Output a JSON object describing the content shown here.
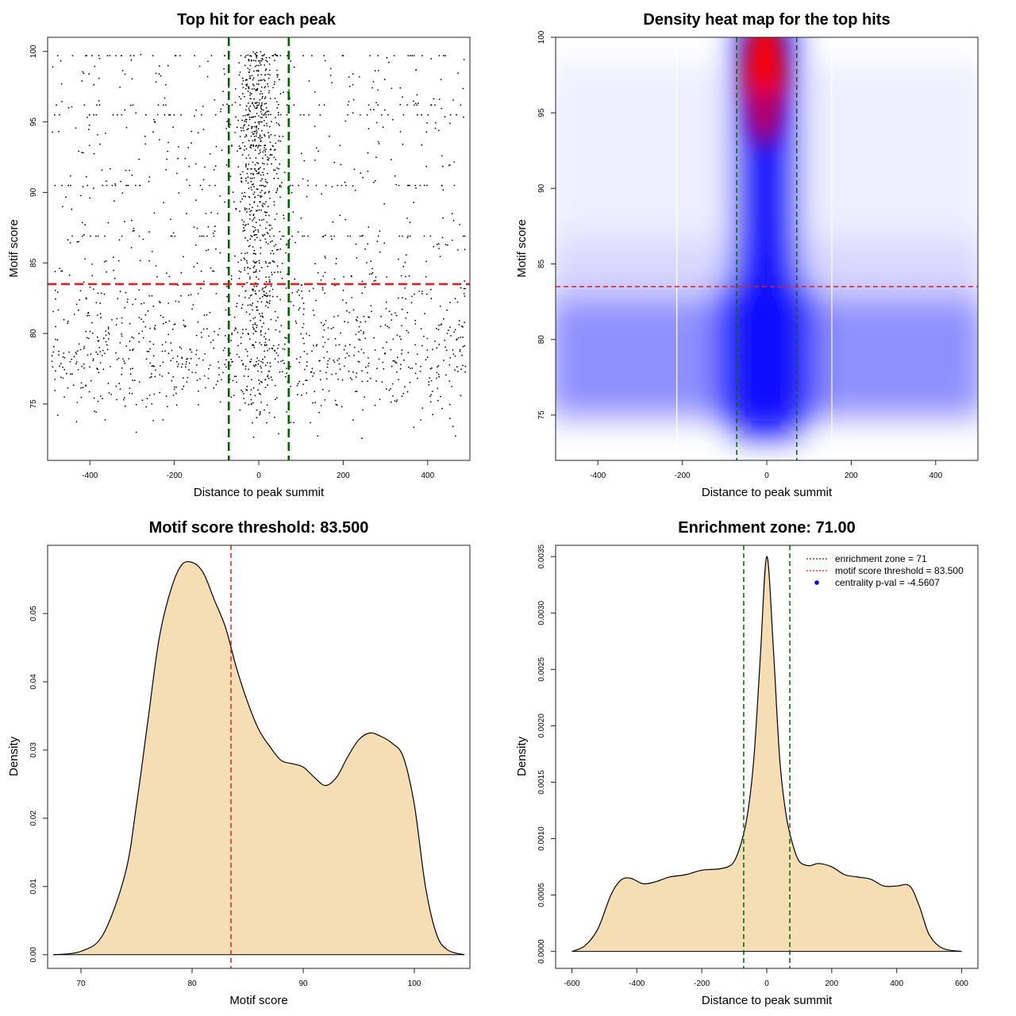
{
  "chart_data": [
    {
      "id": "scatter",
      "type": "scatter",
      "title": "Top hit for each peak",
      "xlabel": "Distance to peak summit",
      "ylabel": "Motif score",
      "xlim": [
        -500,
        500
      ],
      "ylim": [
        71,
        101
      ],
      "xticks": [
        -400,
        -200,
        0,
        200,
        400
      ],
      "yticks": [
        75,
        80,
        85,
        90,
        95,
        100
      ],
      "point_count": 2200,
      "vlines": [
        -71,
        71
      ],
      "hline": 83.5,
      "vline_color": "#006400",
      "hline_color": "#dd2222"
    },
    {
      "id": "heatmap",
      "type": "heatmap",
      "title": "Density heat map for the top hits",
      "xlabel": "Distance to peak summit",
      "ylabel": "Motif score",
      "xlim": [
        -500,
        500
      ],
      "ylim": [
        72,
        100
      ],
      "xticks": [
        -400,
        -200,
        0,
        200,
        400
      ],
      "yticks": [
        75,
        80,
        85,
        90,
        95,
        100
      ],
      "vlines": [
        -71,
        71
      ],
      "white_lines": [
        -213,
        154
      ],
      "hline": 83.5,
      "color_scale": [
        "#ffffff",
        "#0000ff",
        "#ff0000"
      ],
      "hotspot": {
        "x": 0,
        "y": 98
      }
    },
    {
      "id": "density-score",
      "type": "area",
      "title": "Motif score threshold: 83.500",
      "xlabel": "Motif score",
      "ylabel": "Density",
      "xlim": [
        67,
        105
      ],
      "ylim": [
        -0.002,
        0.06
      ],
      "xticks": [
        70,
        80,
        90,
        100
      ],
      "yticks": [
        0.0,
        0.01,
        0.02,
        0.03,
        0.04,
        0.05
      ],
      "ytick_labels": [
        "0.00",
        "0.01",
        "0.02",
        "0.03",
        "0.04",
        "0.05"
      ],
      "x": [
        67.5,
        70,
        72,
        74,
        75,
        76,
        77,
        78,
        79,
        80,
        81,
        82,
        83,
        84,
        85,
        86,
        87,
        88,
        89,
        90,
        91,
        92,
        93,
        94,
        95,
        96,
        97,
        98,
        99,
        100,
        101,
        102,
        103,
        104.5
      ],
      "y": [
        0.0,
        0.0005,
        0.003,
        0.012,
        0.022,
        0.034,
        0.046,
        0.053,
        0.057,
        0.0575,
        0.056,
        0.052,
        0.048,
        0.042,
        0.037,
        0.033,
        0.0305,
        0.0285,
        0.028,
        0.0275,
        0.026,
        0.0248,
        0.026,
        0.029,
        0.0315,
        0.0325,
        0.032,
        0.031,
        0.029,
        0.022,
        0.01,
        0.003,
        0.0007,
        0.0
      ],
      "threshold": 83.5,
      "fill": "#f5deb3",
      "threshold_color": "#dd2222"
    },
    {
      "id": "density-distance",
      "type": "area",
      "title": "Enrichment zone: 71.00",
      "xlabel": "Distance to peak summit",
      "ylabel": "Density",
      "xlim": [
        -650,
        650
      ],
      "ylim": [
        -0.00015,
        0.0036
      ],
      "xticks": [
        -600,
        -400,
        -200,
        0,
        200,
        400,
        600
      ],
      "yticks": [
        0.0,
        0.0005,
        0.001,
        0.0015,
        0.002,
        0.0025,
        0.003,
        0.0035
      ],
      "ytick_labels": [
        "0.0000",
        "0.0005",
        "0.0010",
        "0.0015",
        "0.0020",
        "0.0025",
        "0.0030",
        "0.0035"
      ],
      "x": [
        -600,
        -560,
        -520,
        -480,
        -450,
        -420,
        -380,
        -340,
        -300,
        -250,
        -200,
        -150,
        -120,
        -100,
        -80,
        -60,
        -40,
        -20,
        0,
        20,
        40,
        60,
        80,
        100,
        130,
        160,
        200,
        240,
        280,
        320,
        360,
        400,
        440,
        470,
        500,
        540,
        600
      ],
      "y": [
        0.0,
        5e-05,
        0.0002,
        0.0005,
        0.00063,
        0.00065,
        0.0006,
        0.00062,
        0.00066,
        0.00068,
        0.00072,
        0.00073,
        0.00075,
        0.0008,
        0.00095,
        0.0012,
        0.0017,
        0.0026,
        0.0035,
        0.0027,
        0.0017,
        0.0012,
        0.00095,
        0.0008,
        0.00076,
        0.00078,
        0.00075,
        0.00068,
        0.00066,
        0.00064,
        0.00058,
        0.00058,
        0.00058,
        0.0004,
        0.00015,
        3e-05,
        0.0
      ],
      "vlines": [
        -71,
        71
      ],
      "fill": "#f5deb3",
      "vline_color": "#006400",
      "legend": [
        {
          "label": "enrichment zone = 71",
          "color": "#006400",
          "style": "dotted-line"
        },
        {
          "label": "motif score threshold = 83.500",
          "color": "#dd2222",
          "style": "dotted-line"
        },
        {
          "label": "centrality p-val = -4.5607",
          "color": "#0000ff",
          "style": "point"
        }
      ]
    }
  ]
}
